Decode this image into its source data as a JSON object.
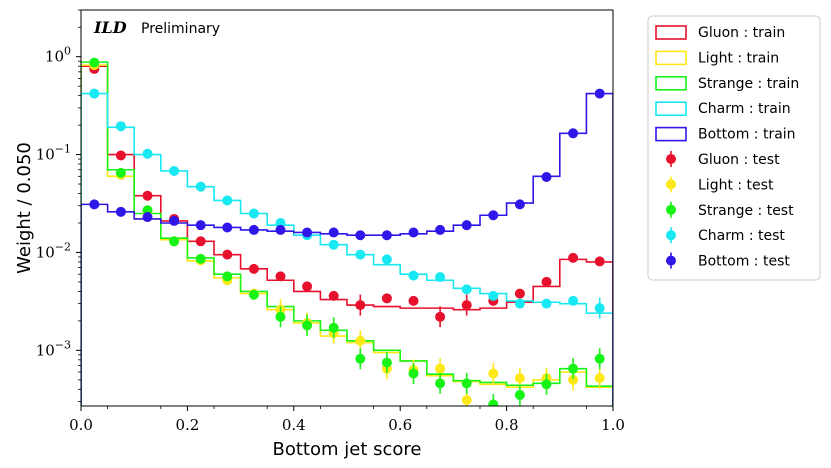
{
  "chart_data": {
    "type": "step",
    "xlabel": "Bottom jet score",
    "ylabel": "Weight / 0.050",
    "xlim": [
      0.0,
      1.0
    ],
    "ylim": [
      0.00027,
      3.0
    ],
    "yscale": "log",
    "x_ticks": [
      "0.0",
      "0.2",
      "0.4",
      "0.6",
      "0.8",
      "1.0"
    ],
    "y_ticks": [
      {
        "base": "10",
        "exp": "0",
        "value": 1
      },
      {
        "base": "10",
        "exp": "−1",
        "value": 0.1
      },
      {
        "base": "10",
        "exp": "−2",
        "value": 0.01
      },
      {
        "base": "10",
        "exp": "−3",
        "value": 0.001
      }
    ],
    "annotation": {
      "bold": "ILD",
      "normal": "Preliminary"
    },
    "legend_position": "outside-top-right",
    "bin_edges": [
      0.0,
      0.05,
      0.1,
      0.15,
      0.2,
      0.25,
      0.3,
      0.35,
      0.4,
      0.45,
      0.5,
      0.55,
      0.6,
      0.65,
      0.7,
      0.75,
      0.8,
      0.85,
      0.9,
      0.95,
      1.0
    ],
    "bin_centers": [
      0.025,
      0.075,
      0.125,
      0.175,
      0.225,
      0.275,
      0.325,
      0.375,
      0.425,
      0.475,
      0.525,
      0.575,
      0.625,
      0.675,
      0.725,
      0.775,
      0.825,
      0.875,
      0.925,
      0.975
    ],
    "train": [
      {
        "name": "Gluon : train",
        "color": "#e8112d",
        "values": [
          0.8,
          0.1,
          0.038,
          0.021,
          0.013,
          0.0095,
          0.0068,
          0.0052,
          0.004,
          0.0033,
          0.0029,
          0.0028,
          0.0027,
          0.0027,
          0.0026,
          0.0027,
          0.0031,
          0.0045,
          0.0085,
          0.008
        ]
      },
      {
        "name": "Light : train",
        "color": "#ffe817",
        "values": [
          0.82,
          0.06,
          0.022,
          0.0135,
          0.0082,
          0.0055,
          0.0038,
          0.0026,
          0.0019,
          0.0014,
          0.0012,
          0.00095,
          0.00078,
          0.00055,
          0.00048,
          0.00045,
          0.00042,
          0.0005,
          0.0006,
          0.00042
        ]
      },
      {
        "name": "Strange : train",
        "color": "#17f217",
        "values": [
          0.88,
          0.07,
          0.025,
          0.014,
          0.0088,
          0.006,
          0.004,
          0.0028,
          0.002,
          0.0016,
          0.00125,
          0.001,
          0.00078,
          0.00057,
          0.00049,
          0.00047,
          0.00044,
          0.00046,
          0.00065,
          0.00043
        ]
      },
      {
        "name": "Charm : train",
        "color": "#17e8f2",
        "values": [
          0.42,
          0.19,
          0.1,
          0.068,
          0.047,
          0.034,
          0.025,
          0.019,
          0.015,
          0.012,
          0.0095,
          0.0075,
          0.006,
          0.0052,
          0.0043,
          0.0038,
          0.0032,
          0.0031,
          0.003,
          0.0024
        ]
      },
      {
        "name": "Bottom : train",
        "color": "#2e17e8",
        "values": [
          0.031,
          0.026,
          0.022,
          0.02,
          0.019,
          0.018,
          0.017,
          0.0165,
          0.016,
          0.0155,
          0.015,
          0.015,
          0.0155,
          0.0165,
          0.019,
          0.024,
          0.032,
          0.06,
          0.165,
          0.42
        ]
      }
    ],
    "test": [
      {
        "name": "Gluon : test",
        "color": "#e8112d",
        "values": [
          0.75,
          0.098,
          0.038,
          0.022,
          0.013,
          0.0095,
          0.0068,
          0.0057,
          0.0045,
          0.0036,
          0.0029,
          0.0034,
          0.0032,
          0.0022,
          0.0029,
          0.0032,
          0.0038,
          0.005,
          0.0088,
          0.0081
        ]
      },
      {
        "name": "Light : test",
        "color": "#ffe817",
        "values": [
          0.82,
          0.062,
          0.026,
          0.013,
          0.0083,
          0.0052,
          0.0038,
          0.0026,
          0.0019,
          0.0015,
          0.00125,
          0.00065,
          0.00063,
          0.00065,
          0.00031,
          0.00058,
          0.00052,
          0.00052,
          0.0005,
          0.00052
        ]
      },
      {
        "name": "Strange : test",
        "color": "#17f217",
        "values": [
          0.87,
          0.065,
          0.027,
          0.013,
          0.0086,
          0.0057,
          0.0037,
          0.0022,
          0.0018,
          0.0017,
          0.00082,
          0.00075,
          0.00058,
          0.00046,
          0.00046,
          0.00028,
          0.00035,
          0.00045,
          0.00065,
          0.00082
        ]
      },
      {
        "name": "Charm : test",
        "color": "#17e8f2",
        "values": [
          0.42,
          0.195,
          0.102,
          0.068,
          0.047,
          0.034,
          0.025,
          0.02,
          0.015,
          0.012,
          0.0095,
          0.0085,
          0.0058,
          0.0056,
          0.0042,
          0.0036,
          0.003,
          0.003,
          0.0032,
          0.0027
        ]
      },
      {
        "name": "Bottom : test",
        "color": "#2e17e8",
        "values": [
          0.031,
          0.026,
          0.023,
          0.021,
          0.019,
          0.018,
          0.017,
          0.017,
          0.016,
          0.016,
          0.015,
          0.015,
          0.016,
          0.017,
          0.019,
          0.024,
          0.031,
          0.059,
          0.165,
          0.42
        ]
      }
    ]
  }
}
